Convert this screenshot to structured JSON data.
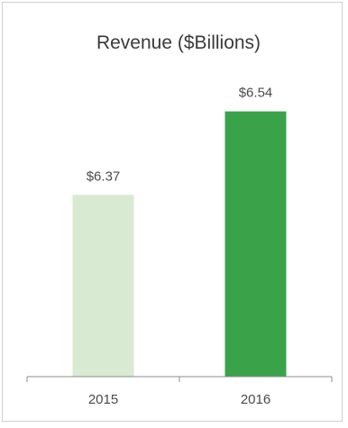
{
  "chart_data": {
    "type": "bar",
    "title": "Revenue ($Billions)",
    "categories": [
      "2015",
      "2016"
    ],
    "values": [
      6.37,
      6.54
    ],
    "data_labels": [
      "$6.37",
      "$6.54"
    ],
    "colors": [
      "#d9ead3",
      "#3aa34a"
    ],
    "xlabel": "",
    "ylabel": "",
    "ylim": [
      6.0,
      6.62
    ],
    "grid": false,
    "legend": "none"
  }
}
